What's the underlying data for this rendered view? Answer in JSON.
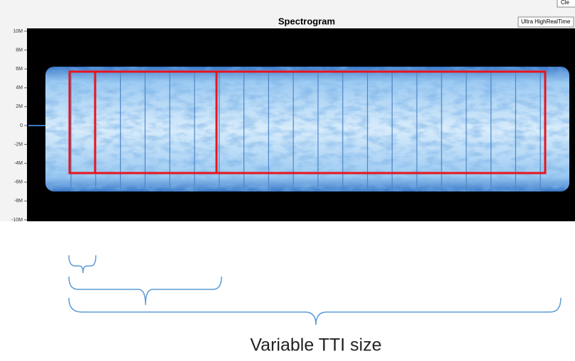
{
  "window": {
    "title": "Spectrogram",
    "corner_button": "Cle",
    "mode_button": "Ultra HighRealTime"
  },
  "y_axis_labels": [
    "10M",
    "8M",
    "6M",
    "4M",
    "2M",
    "0",
    "-2M",
    "-4M",
    "-6M",
    "-8M",
    "-10M"
  ],
  "caption": "Variable TTI size"
}
